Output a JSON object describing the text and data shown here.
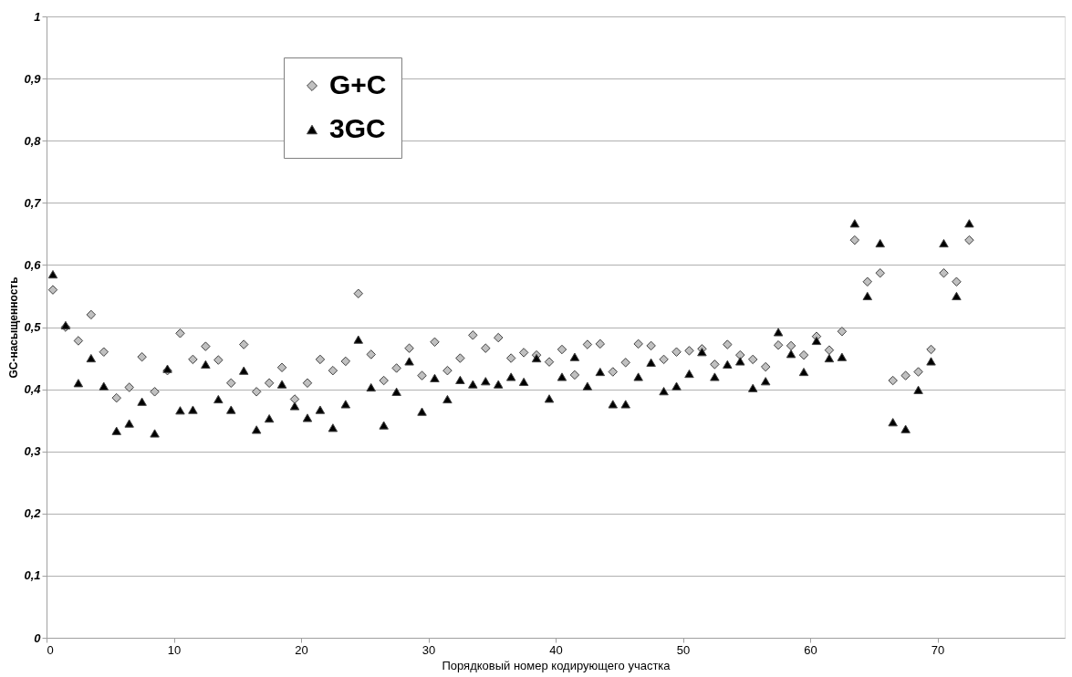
{
  "chart_data": {
    "type": "scatter",
    "xlabel": "Порядковый номер кодирующего участка",
    "ylabel": "GC-насыщенность",
    "x": [
      0.5,
      1.5,
      2.5,
      3.5,
      4.5,
      5.5,
      6.5,
      7.5,
      8.5,
      9.5,
      10.5,
      11.5,
      12.5,
      13.5,
      14.5,
      15.5,
      16.5,
      17.5,
      18.5,
      19.5,
      20.5,
      21.5,
      22.5,
      23.5,
      24.5,
      25.5,
      26.5,
      27.5,
      28.5,
      29.5,
      30.5,
      31.5,
      32.5,
      33.5,
      34.5,
      35.5,
      36.5,
      37.5,
      38.5,
      39.5,
      40.5,
      41.5,
      42.5,
      43.5,
      44.5,
      45.5,
      46.5,
      47.5,
      48.5,
      49.5,
      50.5,
      51.5,
      52.5,
      53.5,
      54.5,
      55.5,
      56.5,
      57.5,
      58.5,
      59.5,
      60.5,
      61.5,
      62.5,
      63.5,
      64.5,
      65.5,
      66.5,
      67.5,
      68.5,
      69.5,
      70.5,
      71.5,
      72.5
    ],
    "series": [
      {
        "name": "G+C",
        "color": "#c0c0c0",
        "marker": "diamond",
        "values": [
          0.56,
          0.5,
          0.478,
          0.52,
          0.46,
          0.386,
          0.403,
          0.452,
          0.396,
          0.43,
          0.49,
          0.448,
          0.469,
          0.447,
          0.41,
          0.472,
          0.396,
          0.41,
          0.435,
          0.384,
          0.41,
          0.448,
          0.43,
          0.445,
          0.554,
          0.456,
          0.414,
          0.434,
          0.466,
          0.422,
          0.476,
          0.43,
          0.45,
          0.487,
          0.466,
          0.483,
          0.45,
          0.459,
          0.455,
          0.444,
          0.464,
          0.423,
          0.472,
          0.473,
          0.428,
          0.443,
          0.473,
          0.47,
          0.448,
          0.46,
          0.462,
          0.465,
          0.44,
          0.472,
          0.455,
          0.448,
          0.436,
          0.471,
          0.47,
          0.455,
          0.485,
          0.463,
          0.493,
          0.64,
          0.573,
          0.587,
          0.414,
          0.422,
          0.428,
          0.464,
          0.587,
          0.573,
          0.64
        ]
      },
      {
        "name": "3GC",
        "color": "#000000",
        "marker": "triangle",
        "values": [
          0.585,
          0.503,
          0.41,
          0.45,
          0.405,
          0.333,
          0.345,
          0.38,
          0.329,
          0.433,
          0.366,
          0.367,
          0.44,
          0.384,
          0.367,
          0.43,
          0.335,
          0.353,
          0.408,
          0.373,
          0.354,
          0.367,
          0.338,
          0.376,
          0.48,
          0.403,
          0.342,
          0.396,
          0.445,
          0.364,
          0.418,
          0.384,
          0.415,
          0.408,
          0.413,
          0.408,
          0.42,
          0.412,
          0.45,
          0.385,
          0.42,
          0.452,
          0.405,
          0.428,
          0.376,
          0.376,
          0.42,
          0.443,
          0.397,
          0.405,
          0.425,
          0.46,
          0.42,
          0.44,
          0.445,
          0.402,
          0.413,
          0.492,
          0.457,
          0.428,
          0.478,
          0.45,
          0.452,
          0.667,
          0.55,
          0.635,
          0.347,
          0.336,
          0.399,
          0.445,
          0.635,
          0.55,
          0.667
        ]
      }
    ],
    "xlim": [
      0,
      80
    ],
    "xticks": [
      0,
      10,
      20,
      30,
      40,
      50,
      60,
      70
    ],
    "ylim": [
      0,
      1
    ],
    "yticks": [
      {
        "value": 0,
        "label": "0"
      },
      {
        "value": 0.1,
        "label": "0,1"
      },
      {
        "value": 0.2,
        "label": "0,2"
      },
      {
        "value": 0.3,
        "label": "0,3"
      },
      {
        "value": 0.4,
        "label": "0,4"
      },
      {
        "value": 0.5,
        "label": "0,5"
      },
      {
        "value": 0.6,
        "label": "0,6"
      },
      {
        "value": 0.7,
        "label": "0,7"
      },
      {
        "value": 0.8,
        "label": "0,8"
      },
      {
        "value": 0.9,
        "label": "0,9"
      },
      {
        "value": 1,
        "label": "1"
      }
    ],
    "grid": "y",
    "legend": "top left"
  }
}
